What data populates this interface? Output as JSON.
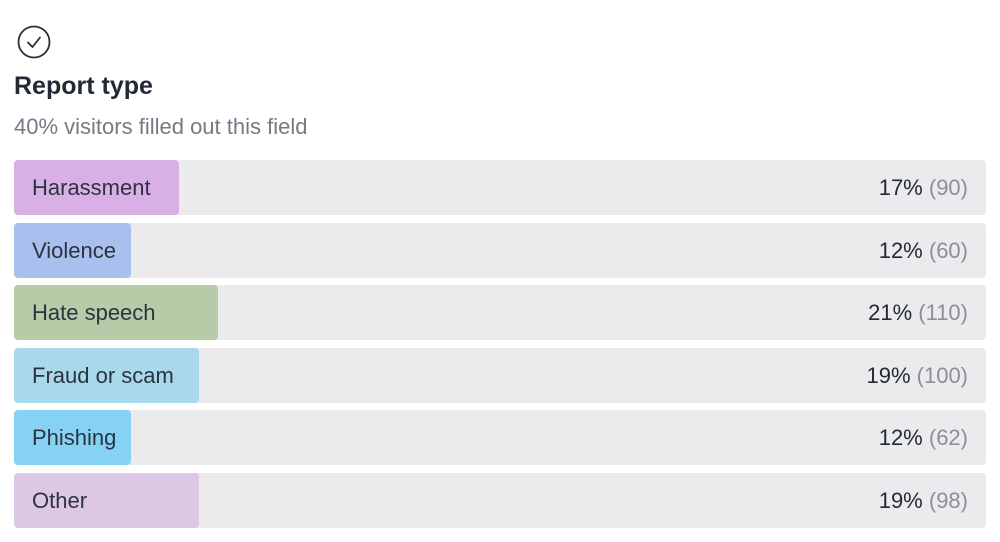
{
  "header": {
    "title": "Report type",
    "subtitle": "40% visitors filled out this field"
  },
  "rows": [
    {
      "label": "Harassment",
      "percent": 17,
      "percent_label": "17%",
      "count": "(90)",
      "color": "#d9b0e6"
    },
    {
      "label": "Violence",
      "percent": 12,
      "percent_label": "12%",
      "count": "(60)",
      "color": "#a9c0ee"
    },
    {
      "label": "Hate speech",
      "percent": 21,
      "percent_label": "21%",
      "count": "(110)",
      "color": "#b6cba8"
    },
    {
      "label": "Fraud or scam",
      "percent": 19,
      "percent_label": "19%",
      "count": "(100)",
      "color": "#a8d9ea"
    },
    {
      "label": "Phishing",
      "percent": 12,
      "percent_label": "12%",
      "count": "(62)",
      "color": "#86d2f5"
    },
    {
      "label": "Other",
      "percent": 19,
      "percent_label": "19%",
      "count": "(98)",
      "color": "#dcc8e4"
    }
  ]
}
